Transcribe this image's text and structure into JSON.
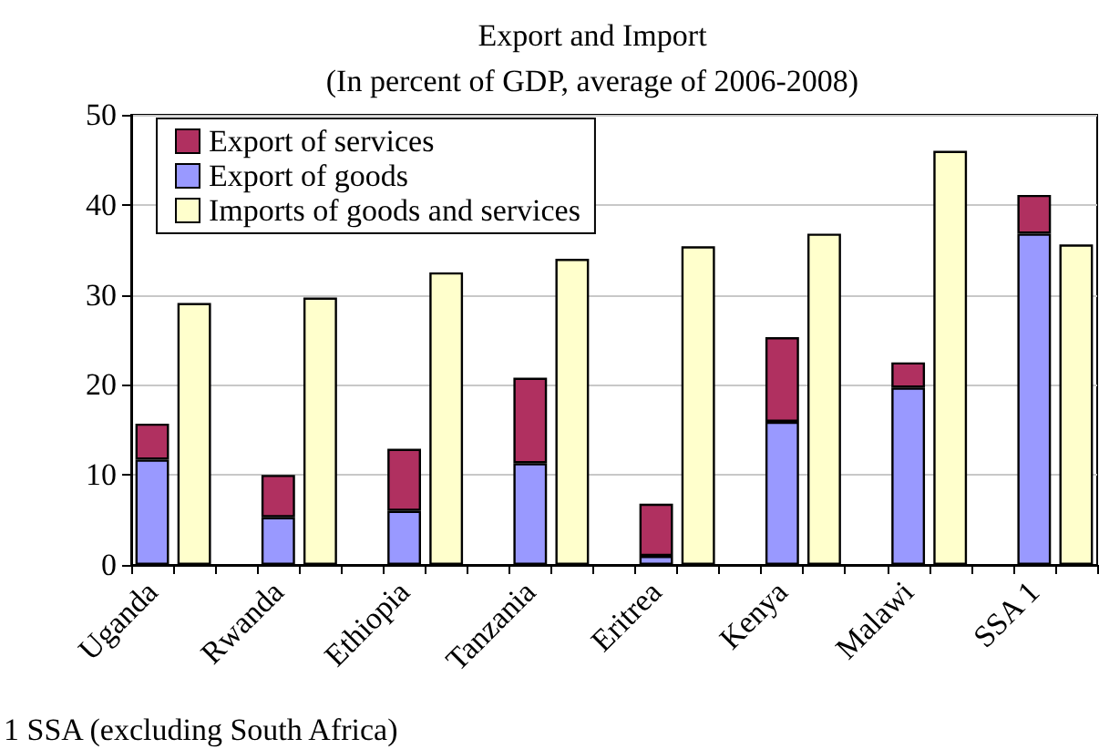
{
  "chart_data": {
    "type": "bar",
    "title": "Export and Import",
    "subtitle": "(In percent of GDP, average of 2006-2008)",
    "categories": [
      "Uganda",
      null,
      null,
      "Rwanda",
      null,
      null,
      "Ethiopia",
      null,
      null,
      "Tanzania",
      null,
      null,
      "Eritrea",
      null,
      null,
      "Kenya",
      null,
      null,
      "Malawi",
      null,
      null,
      "SSA 1",
      null
    ],
    "series": [
      {
        "name": "Imports of goods and services",
        "color": "#ffffcc",
        "values": [
          null,
          29.1,
          null,
          null,
          29.7,
          null,
          null,
          32.5,
          null,
          null,
          34.0,
          null,
          null,
          35.4,
          null,
          null,
          36.8,
          null,
          null,
          46.0,
          null,
          null,
          35.6
        ]
      },
      {
        "name": "Export of goods",
        "color": "#9999ff",
        "values": [
          11.7,
          null,
          null,
          5.3,
          null,
          null,
          6.0,
          null,
          null,
          11.3,
          null,
          null,
          1.0,
          null,
          null,
          15.9,
          null,
          null,
          19.7,
          null,
          null,
          36.8,
          null
        ]
      },
      {
        "name": "Export of services",
        "color": "#b03060",
        "values": [
          4.0,
          null,
          null,
          4.7,
          null,
          null,
          6.9,
          null,
          null,
          9.5,
          null,
          null,
          5.8,
          null,
          null,
          9.4,
          null,
          null,
          2.8,
          null,
          null,
          4.3,
          null
        ]
      }
    ],
    "stacked": true,
    "ylim": [
      0,
      50
    ],
    "yticks": [
      0,
      10,
      20,
      30,
      40,
      50
    ],
    "grid": "y",
    "legend": "top left",
    "annotations": [
      "1 SSA (excluding South Africa)"
    ]
  }
}
